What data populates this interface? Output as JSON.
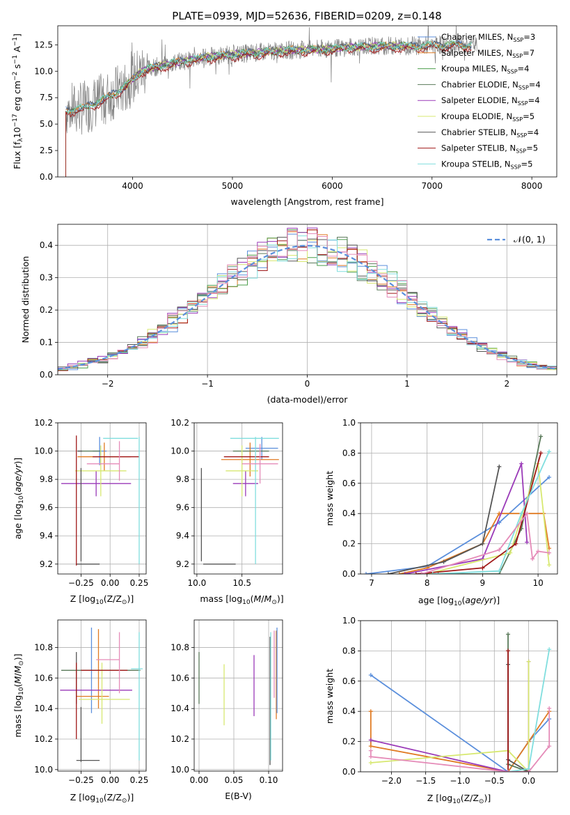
{
  "figure_title": "PLATE=0939, MJD=52636, FIBERID=0209, z=0.148",
  "colors": {
    "Chabrier MILES": "#5b8fdc",
    "Salpeter MILES": "#e07a22",
    "Kroupa MILES": "#4b9e4b",
    "Chabrier ELODIE": "#5a7a5a",
    "Salpeter ELODIE": "#9a3ab8",
    "Kroupa ELODIE": "#d7e870",
    "Chabrier STELIB": "#555555",
    "Salpeter STELIB": "#a01818",
    "Kroupa STELIB": "#80dede",
    "pink": "#e58bb8",
    "data": "#808080",
    "gauss": "#5b8fdc"
  },
  "chart_data": [
    {
      "id": "spectrum",
      "type": "line",
      "xlabel": "wavelength [Angstrom, rest frame]",
      "ylabel_main": "Flux [f",
      "ylabel_sub1": "λ",
      "ylabel_mid": "10",
      "ylabel_sup1": "−17",
      "ylabel_mid2": " erg cm",
      "ylabel_sup2": "−2",
      "ylabel_mid3": " s",
      "ylabel_sup3": "−1",
      "ylabel_mid4": " A",
      "ylabel_sup4": "−1",
      "ylabel_end": "]",
      "xlim": [
        3250,
        8250
      ],
      "ylim": [
        0,
        14.3
      ],
      "xticks": [
        "4000",
        "5000",
        "6000",
        "7000",
        "8000"
      ],
      "xtick_values": [
        4000,
        5000,
        6000,
        7000,
        8000
      ],
      "yticks": [
        "0.0",
        "2.5",
        "5.0",
        "7.5",
        "10.0",
        "12.5"
      ],
      "ytick_values": [
        0,
        2.5,
        5,
        7.5,
        10,
        12.5
      ],
      "legend_position": "top-right",
      "continuum": {
        "x": [
          3330,
          3500,
          3700,
          3900,
          4100,
          4400,
          4700,
          5000,
          5300,
          5600,
          5900,
          6200,
          6500,
          6800,
          7100,
          7400
        ],
        "y": [
          6.3,
          6.5,
          7.3,
          8.4,
          10.1,
          10.8,
          11.3,
          11.6,
          11.8,
          12.0,
          12.1,
          12.3,
          12.4,
          12.4,
          12.5,
          12.5
        ]
      },
      "series": [
        {
          "name": "Chabrier MILES",
          "color_key": "Chabrier MILES",
          "nssp": "3"
        },
        {
          "name": "Salpeter MILES",
          "color_key": "Salpeter MILES",
          "nssp": "7"
        },
        {
          "name": "Kroupa MILES",
          "color_key": "Kroupa MILES",
          "nssp": "4"
        },
        {
          "name": "Chabrier ELODIE",
          "color_key": "Chabrier ELODIE",
          "nssp": "4"
        },
        {
          "name": "Salpeter ELODIE",
          "color_key": "Salpeter ELODIE",
          "nssp": "4"
        },
        {
          "name": "Kroupa ELODIE",
          "color_key": "Kroupa ELODIE",
          "nssp": "5"
        },
        {
          "name": "Chabrier STELIB",
          "color_key": "Chabrier STELIB",
          "nssp": "4"
        },
        {
          "name": "Salpeter STELIB",
          "color_key": "Salpeter STELIB",
          "nssp": "5"
        },
        {
          "name": "Kroupa STELIB",
          "color_key": "Kroupa STELIB",
          "nssp": "5"
        }
      ]
    },
    {
      "id": "residuals",
      "type": "line",
      "xlabel": "(data-model)/error",
      "ylabel": "Normed distribution",
      "xlim": [
        -2.5,
        2.5
      ],
      "ylim": [
        0,
        0.465
      ],
      "xticks": [
        "−2",
        "−1",
        "0",
        "1",
        "2"
      ],
      "xtick_values": [
        -2,
        -1,
        0,
        1,
        2
      ],
      "yticks": [
        "0.0",
        "0.1",
        "0.2",
        "0.3",
        "0.4"
      ],
      "ytick_values": [
        0,
        0.1,
        0.2,
        0.3,
        0.4
      ],
      "grid": true,
      "legend_position": "top-right",
      "legend_label": "𝒩(0, 1)",
      "bin_width": 0.1
    },
    {
      "id": "age-vs-Z",
      "type": "scatter",
      "xlabel": "Z [log",
      "xlabel_sub": "10",
      "xlabel_end": "(Z/Z",
      "xlabel_sub2": "⊙",
      "xlabel_end2": ")]",
      "ylabel": "age  [log",
      "ylabel_sub": "10",
      "ylabel_end": "(age/yr)]",
      "xlim": [
        -0.45,
        0.31
      ],
      "ylim": [
        9.13,
        10.2
      ],
      "xticks": [
        "−0.25",
        "0.00",
        "0.25"
      ],
      "xtick_values": [
        -0.25,
        0,
        0.25
      ],
      "yticks": [
        "9.2",
        "9.4",
        "9.6",
        "9.8",
        "10.0",
        "10.2"
      ],
      "ytick_values": [
        9.2,
        9.4,
        9.6,
        9.8,
        10.0,
        10.2
      ],
      "grid": true,
      "errorbars": [
        {
          "c": "Chabrier MILES",
          "x": -0.09,
          "xe": 0.06,
          "y": 10.0,
          "ye": 0.1
        },
        {
          "c": "Salpeter MILES",
          "x": -0.05,
          "xe": 0.23,
          "y": 9.96,
          "ye": 0.1
        },
        {
          "c": "Chabrier ELODIE",
          "x": -0.18,
          "xe": 0.1,
          "y": 10.0,
          "ye": 0.0
        },
        {
          "c": "Salpeter ELODIE",
          "x": -0.12,
          "xe": 0.3,
          "y": 9.77,
          "ye": 0.09
        },
        {
          "c": "Kroupa ELODIE",
          "x": -0.08,
          "xe": 0.22,
          "y": 9.86,
          "ye": 0.18
        },
        {
          "c": "Chabrier STELIB",
          "x": -0.26,
          "xe": 0.02,
          "y": 10.0,
          "ye": 0.0
        },
        {
          "c": "Chabrier STELIB",
          "x": -0.19,
          "xe": 0.1,
          "y": 9.2,
          "ye": 0.0
        },
        {
          "c": "Chabrier STELIB",
          "x": -0.25,
          "xe": 0.0,
          "y": 9.55,
          "ye": 0.33
        },
        {
          "c": "Salpeter STELIB",
          "x": -0.29,
          "xe": 0.0,
          "y": 9.65,
          "ye": 0.46
        },
        {
          "c": "Salpeter STELIB",
          "x": 0.05,
          "xe": 0.2,
          "y": 9.96,
          "ye": 0.0
        },
        {
          "c": "Kroupa STELIB",
          "x": 0.09,
          "xe": 0.15,
          "y": 10.09,
          "ye": 0.0
        },
        {
          "c": "Kroupa STELIB",
          "x": 0.25,
          "xe": 0.0,
          "y": 9.65,
          "ye": 0.45
        },
        {
          "c": "pink",
          "x": 0.08,
          "xe": 0.0,
          "y": 9.93,
          "ye": 0.14
        },
        {
          "c": "pink",
          "x": -0.06,
          "xe": 0.14,
          "y": 9.91,
          "ye": 0.0
        }
      ]
    },
    {
      "id": "age-vs-mass",
      "type": "scatter",
      "xlabel": "mass [log",
      "xlabel_sub": "10",
      "xlabel_end": "(M/M",
      "xlabel_sub2": "⊙",
      "xlabel_end2": ")]",
      "xlim": [
        9.97,
        10.95
      ],
      "ylim": [
        9.13,
        10.2
      ],
      "xticks": [
        "10.0",
        "10.5"
      ],
      "xtick_values": [
        10.0,
        10.5
      ],
      "yticks": [
        "9.2",
        "9.4",
        "9.6",
        "9.8",
        "10.0",
        "10.2"
      ],
      "ytick_values": [
        9.2,
        9.4,
        9.6,
        9.8,
        10.0,
        10.2
      ],
      "grid": true,
      "errorbars": [
        {
          "c": "Chabrier MILES",
          "x": 10.72,
          "xe": 0.18,
          "y": 10.02,
          "ye": 0.08
        },
        {
          "c": "Salpeter MILES",
          "x": 10.59,
          "xe": 0.32,
          "y": 9.94,
          "ye": 0.12
        },
        {
          "c": "Chabrier ELODIE",
          "x": 10.6,
          "xe": 0.2,
          "y": 10.0,
          "ye": 0.0
        },
        {
          "c": "Salpeter ELODIE",
          "x": 10.54,
          "xe": 0.14,
          "y": 9.77,
          "ye": 0.09
        },
        {
          "c": "Kroupa ELODIE",
          "x": 10.5,
          "xe": 0.18,
          "y": 9.86,
          "ye": 0.18
        },
        {
          "c": "Chabrier STELIB",
          "x": 10.05,
          "xe": 0.0,
          "y": 9.55,
          "ye": 0.33
        },
        {
          "c": "Chabrier STELIB",
          "x": 10.25,
          "xe": 0.18,
          "y": 9.2,
          "ye": 0.0
        },
        {
          "c": "Salpeter STELIB",
          "x": 10.55,
          "xe": 0.25,
          "y": 9.96,
          "ye": 0.0
        },
        {
          "c": "Kroupa STELIB",
          "x": 10.64,
          "xe": 0.27,
          "y": 10.09,
          "ye": 0.0
        },
        {
          "c": "Kroupa STELIB",
          "x": 10.65,
          "xe": 0.0,
          "y": 9.65,
          "ye": 0.45
        },
        {
          "c": "pink",
          "x": 10.7,
          "xe": 0.2,
          "y": 9.91,
          "ye": 0.14
        }
      ]
    },
    {
      "id": "massweight-vs-age",
      "type": "line",
      "xlabel": "age  [log",
      "xlabel_sub": "10",
      "xlabel_end": "(age/yr)]",
      "ylabel": "mass weight",
      "xlim": [
        6.8,
        10.35
      ],
      "ylim": [
        0,
        1
      ],
      "xticks": [
        "7",
        "8",
        "9",
        "10"
      ],
      "xtick_values": [
        7,
        8,
        9,
        10
      ],
      "yticks": [
        "0.0",
        "0.2",
        "0.4",
        "0.6",
        "0.8",
        "1.0"
      ],
      "ytick_values": [
        0,
        0.2,
        0.4,
        0.6,
        0.8,
        1.0
      ],
      "grid": true,
      "lines": [
        {
          "c": "Chabrier MILES",
          "x": [
            6.9,
            8.0,
            9.3,
            10.2
          ],
          "y": [
            0.0,
            0.05,
            0.34,
            0.64
          ]
        },
        {
          "c": "Salpeter MILES",
          "x": [
            7.5,
            8.0,
            9.0,
            9.3,
            10.1,
            10.2
          ],
          "y": [
            0.0,
            0.04,
            0.2,
            0.4,
            0.4,
            0.17
          ]
        },
        {
          "c": "Chabrier ELODIE",
          "x": [
            8.2,
            9.3,
            9.7,
            10.05
          ],
          "y": [
            0.0,
            0.0,
            0.3,
            0.91
          ]
        },
        {
          "c": "Salpeter ELODIE",
          "x": [
            7.6,
            9.0,
            9.7,
            9.8
          ],
          "y": [
            0.0,
            0.1,
            0.73,
            0.21
          ]
        },
        {
          "c": "Kroupa ELODIE",
          "x": [
            8.0,
            9.5,
            10.0,
            10.2
          ],
          "y": [
            0.0,
            0.14,
            0.73,
            0.06
          ]
        },
        {
          "c": "Chabrier STELIB",
          "x": [
            7.3,
            8.3,
            9.0,
            9.3
          ],
          "y": [
            0.0,
            0.08,
            0.2,
            0.71
          ]
        },
        {
          "c": "Salpeter STELIB",
          "x": [
            7.8,
            9.0,
            9.6,
            10.05
          ],
          "y": [
            0.0,
            0.04,
            0.2,
            0.8
          ]
        },
        {
          "c": "Kroupa STELIB",
          "x": [
            8.1,
            9.3,
            9.7,
            10.2
          ],
          "y": [
            0.0,
            0.02,
            0.4,
            0.81
          ]
        },
        {
          "c": "pink",
          "x": [
            7.9,
            9.3,
            9.8,
            9.9,
            10.0,
            10.2
          ],
          "y": [
            0.0,
            0.16,
            0.4,
            0.1,
            0.15,
            0.14
          ]
        }
      ]
    },
    {
      "id": "mass-vs-Z",
      "type": "scatter",
      "xlabel": "Z [log",
      "xlabel_sub": "10",
      "xlabel_end": "(Z/Z",
      "xlabel_sub2": "⊙",
      "xlabel_end2": ")]",
      "ylabel": "mass [log",
      "ylabel_sub": "10",
      "ylabel_end": "(M/M",
      "ylabel_sub2": "⊙",
      "ylabel_end2": ")]",
      "xlim": [
        -0.45,
        0.31
      ],
      "ylim": [
        9.99,
        10.98
      ],
      "xticks": [
        "−0.25",
        "0.00",
        "0.25"
      ],
      "xtick_values": [
        -0.25,
        0,
        0.25
      ],
      "yticks": [
        "10.0",
        "10.2",
        "10.4",
        "10.6",
        "10.8"
      ],
      "ytick_values": [
        10.0,
        10.2,
        10.4,
        10.6,
        10.8
      ],
      "grid": true,
      "errorbars": [
        {
          "c": "Chabrier MILES",
          "x": -0.16,
          "xe": 0.0,
          "y": 10.65,
          "ye": 0.28
        },
        {
          "c": "Salpeter MILES",
          "x": -0.1,
          "xe": 0.0,
          "y": 10.66,
          "ye": 0.26
        },
        {
          "c": "Salpeter MILES",
          "x": -0.15,
          "xe": 0.14,
          "y": 10.48,
          "ye": 0.0
        },
        {
          "c": "Chabrier ELODIE",
          "x": -0.08,
          "xe": 0.34,
          "y": 10.65,
          "ye": 0.0
        },
        {
          "c": "Salpeter ELODIE",
          "x": -0.12,
          "xe": 0.31,
          "y": 10.52,
          "ye": 0.0
        },
        {
          "c": "Kroupa ELODIE",
          "x": -0.05,
          "xe": 0.22,
          "y": 10.46,
          "ye": 0.0
        },
        {
          "c": "Kroupa ELODIE",
          "x": -0.07,
          "xe": 0.0,
          "y": 10.5,
          "ye": 0.2
        },
        {
          "c": "Chabrier STELIB",
          "x": -0.29,
          "xe": 0.0,
          "y": 10.6,
          "ye": 0.17
        },
        {
          "c": "Chabrier STELIB",
          "x": -0.25,
          "xe": 0.0,
          "y": 10.23,
          "ye": 0.18
        },
        {
          "c": "Chabrier STELIB",
          "x": -0.19,
          "xe": 0.1,
          "y": 10.06,
          "ye": 0.0
        },
        {
          "c": "Salpeter STELIB",
          "x": -0.29,
          "xe": 0.0,
          "y": 10.45,
          "ye": 0.25
        },
        {
          "c": "Salpeter STELIB",
          "x": -0.05,
          "xe": 0.2,
          "y": 10.65,
          "ye": 0.0
        },
        {
          "c": "Kroupa STELIB",
          "x": 0.25,
          "xe": 0.0,
          "y": 10.48,
          "ye": 0.42
        },
        {
          "c": "Kroupa STELIB",
          "x": 0.23,
          "xe": 0.05,
          "y": 10.66,
          "ye": 0.0
        },
        {
          "c": "pink",
          "x": 0.08,
          "xe": 0.0,
          "y": 10.7,
          "ye": 0.2
        },
        {
          "c": "pink",
          "x": -0.02,
          "xe": 0.1,
          "y": 10.72,
          "ye": 0.0
        }
      ]
    },
    {
      "id": "mass-vs-ebv",
      "type": "scatter",
      "xlabel": "E(B-V)",
      "xlim": [
        -0.007,
        0.12
      ],
      "ylim": [
        9.99,
        10.98
      ],
      "xticks": [
        "0.00",
        "0.05",
        "0.10"
      ],
      "xtick_values": [
        0,
        0.05,
        0.1
      ],
      "yticks": [
        "10.0",
        "10.2",
        "10.4",
        "10.6",
        "10.8"
      ],
      "ytick_values": [
        10.0,
        10.2,
        10.4,
        10.6,
        10.8
      ],
      "grid": true,
      "errorbars": [
        {
          "c": "Chabrier ELODIE",
          "x": 0.0,
          "xe": 0,
          "y": 10.6,
          "ye": 0.17
        },
        {
          "c": "Kroupa ELODIE",
          "x": 0.036,
          "xe": 0,
          "y": 10.49,
          "ye": 0.2
        },
        {
          "c": "Salpeter ELODIE",
          "x": 0.079,
          "xe": 0,
          "y": 10.55,
          "ye": 0.2
        },
        {
          "c": "Chabrier STELIB",
          "x": 0.102,
          "xe": 0,
          "y": 10.45,
          "ye": 0.42
        },
        {
          "c": "Kroupa STELIB",
          "x": 0.103,
          "xe": 0,
          "y": 10.48,
          "ye": 0.42
        },
        {
          "c": "pink",
          "x": 0.108,
          "xe": 0,
          "y": 10.69,
          "ye": 0.22
        },
        {
          "c": "Salpeter MILES",
          "x": 0.111,
          "xe": 0,
          "y": 10.62,
          "ye": 0.29
        },
        {
          "c": "Chabrier MILES",
          "x": 0.112,
          "xe": 0,
          "y": 10.65,
          "ye": 0.28
        }
      ]
    },
    {
      "id": "massweight-vs-Z",
      "type": "line",
      "xlabel": "Z [log",
      "xlabel_sub": "10",
      "xlabel_end": "(Z/Z",
      "xlabel_sub2": "⊙",
      "xlabel_end2": ")]",
      "ylabel": "mass weight",
      "xlim": [
        -2.45,
        0.42
      ],
      "ylim": [
        0,
        1
      ],
      "xticks": [
        "−2.0",
        "−1.5",
        "−1.0",
        "−0.5",
        "0.0"
      ],
      "xtick_values": [
        -2.0,
        -1.5,
        -1.0,
        -0.5,
        0.0
      ],
      "yticks": [
        "0.0",
        "0.2",
        "0.4",
        "0.6",
        "0.8",
        "1.0"
      ],
      "ytick_values": [
        0,
        0.2,
        0.4,
        0.6,
        0.8,
        1.0
      ],
      "grid": true,
      "lines": [
        {
          "c": "Chabrier MILES",
          "x": [
            -2.3,
            -0.3,
            0.0,
            0.3
          ],
          "y": [
            0.64,
            0.0,
            0.2,
            0.35
          ]
        },
        {
          "c": "Salpeter MILES",
          "x": [
            -2.3,
            -2.3,
            -0.3,
            0.0,
            0.3
          ],
          "y": [
            0.4,
            0.17,
            0.0,
            0.2,
            0.4
          ]
        },
        {
          "c": "Chabrier ELODIE",
          "x": [
            -0.3,
            -0.3,
            0.0
          ],
          "y": [
            0.91,
            0.05,
            0.0
          ]
        },
        {
          "c": "Salpeter ELODIE",
          "x": [
            -2.3,
            -0.3,
            0.0,
            0.0
          ],
          "y": [
            0.21,
            0.0,
            0.0,
            0.73
          ]
        },
        {
          "c": "Kroupa ELODIE",
          "x": [
            -2.3,
            -0.3,
            0.0,
            0.0
          ],
          "y": [
            0.06,
            0.14,
            0.0,
            0.73
          ]
        },
        {
          "c": "Chabrier STELIB",
          "x": [
            -0.3,
            -0.3,
            0.0
          ],
          "y": [
            0.71,
            0.08,
            0.0
          ]
        },
        {
          "c": "Salpeter STELIB",
          "x": [
            -0.3,
            -0.3,
            0.0
          ],
          "y": [
            0.8,
            0.0,
            0.0
          ]
        },
        {
          "c": "Kroupa STELIB",
          "x": [
            -0.3,
            0.0,
            0.3
          ],
          "y": [
            0.0,
            0.02,
            0.81
          ]
        },
        {
          "c": "pink",
          "x": [
            -2.3,
            -2.3,
            -0.3,
            0.0,
            0.3,
            0.3
          ],
          "y": [
            0.14,
            0.1,
            0.0,
            0.0,
            0.17,
            0.42
          ]
        }
      ]
    }
  ]
}
